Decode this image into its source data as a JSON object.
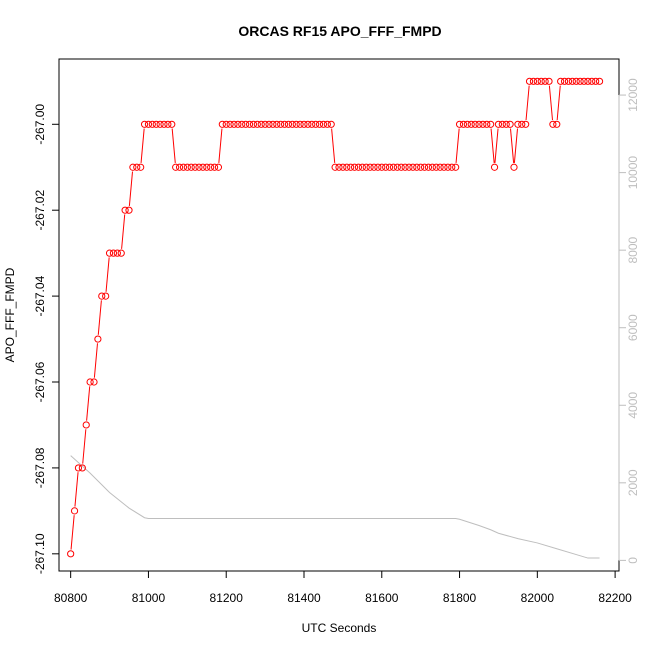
{
  "chart_data": {
    "type": "scatter",
    "title": "ORCAS RF15 APO_FFF_FMPD",
    "xlabel": "UTC Seconds",
    "ylabel": "APO_FFF_FMPD",
    "xlim": [
      80770,
      82210
    ],
    "ylim": [
      -267.104,
      -266.9848
    ],
    "x_ticks": [
      80800,
      81000,
      81200,
      81400,
      81600,
      81800,
      82000,
      82200
    ],
    "y_ticks": [
      -267.1,
      -267.08,
      -267.06,
      -267.04,
      -267.02,
      -267.0
    ],
    "y_tick_labels": [
      "-267.10",
      "-267.08",
      "-267.06",
      "-267.04",
      "-267.02",
      "-267.00"
    ],
    "y2_ticks": [
      0,
      2000,
      4000,
      6000,
      8000,
      10000,
      12000
    ],
    "y2lim": [
      -274,
      12930
    ],
    "grid": false,
    "series": [
      {
        "style": "points-connected",
        "color": "#ff0000",
        "values": [
          [
            80800,
            -267.1
          ],
          [
            80810,
            -267.09
          ],
          [
            80820,
            -267.08
          ],
          [
            80830,
            -267.08
          ],
          [
            80840,
            -267.07
          ],
          [
            80850,
            -267.06
          ],
          [
            80860,
            -267.06
          ],
          [
            80870,
            -267.05
          ],
          [
            80880,
            -267.04
          ],
          [
            80890,
            -267.04
          ],
          [
            80900,
            -267.03
          ],
          [
            80910,
            -267.03
          ],
          [
            80920,
            -267.03
          ],
          [
            80930,
            -267.03
          ],
          [
            80940,
            -267.02
          ],
          [
            80950,
            -267.02
          ],
          [
            80960,
            -267.01
          ],
          [
            80970,
            -267.01
          ],
          [
            80980,
            -267.01
          ],
          [
            80990,
            -267.0
          ],
          [
            81000,
            -267.0
          ],
          [
            81010,
            -267.0
          ],
          [
            81020,
            -267.0
          ],
          [
            81030,
            -267.0
          ],
          [
            81040,
            -267.0
          ],
          [
            81050,
            -267.0
          ],
          [
            81060,
            -267.0
          ],
          [
            81070,
            -267.01
          ],
          [
            81080,
            -267.01
          ],
          [
            81090,
            -267.01
          ],
          [
            81100,
            -267.01
          ],
          [
            81110,
            -267.01
          ],
          [
            81120,
            -267.01
          ],
          [
            81130,
            -267.01
          ],
          [
            81140,
            -267.01
          ],
          [
            81150,
            -267.01
          ],
          [
            81160,
            -267.01
          ],
          [
            81170,
            -267.01
          ],
          [
            81180,
            -267.01
          ],
          [
            81190,
            -267.0
          ],
          [
            81200,
            -267.0
          ],
          [
            81210,
            -267.0
          ],
          [
            81220,
            -267.0
          ],
          [
            81230,
            -267.0
          ],
          [
            81240,
            -267.0
          ],
          [
            81250,
            -267.0
          ],
          [
            81260,
            -267.0
          ],
          [
            81270,
            -267.0
          ],
          [
            81280,
            -267.0
          ],
          [
            81290,
            -267.0
          ],
          [
            81300,
            -267.0
          ],
          [
            81310,
            -267.0
          ],
          [
            81320,
            -267.0
          ],
          [
            81330,
            -267.0
          ],
          [
            81340,
            -267.0
          ],
          [
            81350,
            -267.0
          ],
          [
            81360,
            -267.0
          ],
          [
            81370,
            -267.0
          ],
          [
            81380,
            -267.0
          ],
          [
            81390,
            -267.0
          ],
          [
            81400,
            -267.0
          ],
          [
            81410,
            -267.0
          ],
          [
            81420,
            -267.0
          ],
          [
            81430,
            -267.0
          ],
          [
            81440,
            -267.0
          ],
          [
            81450,
            -267.0
          ],
          [
            81460,
            -267.0
          ],
          [
            81470,
            -267.0
          ],
          [
            81480,
            -267.01
          ],
          [
            81490,
            -267.01
          ],
          [
            81500,
            -267.01
          ],
          [
            81510,
            -267.01
          ],
          [
            81520,
            -267.01
          ],
          [
            81530,
            -267.01
          ],
          [
            81540,
            -267.01
          ],
          [
            81550,
            -267.01
          ],
          [
            81560,
            -267.01
          ],
          [
            81570,
            -267.01
          ],
          [
            81580,
            -267.01
          ],
          [
            81590,
            -267.01
          ],
          [
            81600,
            -267.01
          ],
          [
            81610,
            -267.01
          ],
          [
            81620,
            -267.01
          ],
          [
            81630,
            -267.01
          ],
          [
            81640,
            -267.01
          ],
          [
            81650,
            -267.01
          ],
          [
            81660,
            -267.01
          ],
          [
            81670,
            -267.01
          ],
          [
            81680,
            -267.01
          ],
          [
            81690,
            -267.01
          ],
          [
            81700,
            -267.01
          ],
          [
            81710,
            -267.01
          ],
          [
            81720,
            -267.01
          ],
          [
            81730,
            -267.01
          ],
          [
            81740,
            -267.01
          ],
          [
            81750,
            -267.01
          ],
          [
            81760,
            -267.01
          ],
          [
            81770,
            -267.01
          ],
          [
            81780,
            -267.01
          ],
          [
            81790,
            -267.01
          ],
          [
            81800,
            -267.0
          ],
          [
            81810,
            -267.0
          ],
          [
            81820,
            -267.0
          ],
          [
            81830,
            -267.0
          ],
          [
            81840,
            -267.0
          ],
          [
            81850,
            -267.0
          ],
          [
            81860,
            -267.0
          ],
          [
            81870,
            -267.0
          ],
          [
            81880,
            -267.0
          ],
          [
            81890,
            -267.01
          ],
          [
            81900,
            -267.0
          ],
          [
            81910,
            -267.0
          ],
          [
            81920,
            -267.0
          ],
          [
            81930,
            -267.0
          ],
          [
            81940,
            -267.01
          ],
          [
            81950,
            -267.0
          ],
          [
            81960,
            -267.0
          ],
          [
            81970,
            -267.0
          ],
          [
            81980,
            -266.99
          ],
          [
            81990,
            -266.99
          ],
          [
            82000,
            -266.99
          ],
          [
            82010,
            -266.99
          ],
          [
            82020,
            -266.99
          ],
          [
            82030,
            -266.99
          ],
          [
            82040,
            -267.0
          ],
          [
            82050,
            -267.0
          ],
          [
            82060,
            -266.99
          ],
          [
            82070,
            -266.99
          ],
          [
            82080,
            -266.99
          ],
          [
            82090,
            -266.99
          ],
          [
            82100,
            -266.99
          ],
          [
            82110,
            -266.99
          ],
          [
            82120,
            -266.99
          ],
          [
            82130,
            -266.99
          ],
          [
            82140,
            -266.99
          ],
          [
            82150,
            -266.99
          ],
          [
            82160,
            -266.99
          ]
        ]
      },
      {
        "style": "line",
        "axis": "right",
        "color": "#bebebe",
        "values": [
          [
            80800,
            2700
          ],
          [
            80850,
            2250
          ],
          [
            80900,
            1750
          ],
          [
            80950,
            1350
          ],
          [
            80990,
            1100
          ],
          [
            81000,
            1080
          ],
          [
            81100,
            1080
          ],
          [
            81200,
            1080
          ],
          [
            81300,
            1080
          ],
          [
            81400,
            1080
          ],
          [
            81500,
            1080
          ],
          [
            81600,
            1080
          ],
          [
            81700,
            1080
          ],
          [
            81790,
            1080
          ],
          [
            81800,
            1060
          ],
          [
            81850,
            900
          ],
          [
            81880,
            790
          ],
          [
            81900,
            700
          ],
          [
            81950,
            560
          ],
          [
            82000,
            450
          ],
          [
            82050,
            300
          ],
          [
            82100,
            150
          ],
          [
            82130,
            60
          ],
          [
            82160,
            60
          ]
        ]
      }
    ]
  }
}
